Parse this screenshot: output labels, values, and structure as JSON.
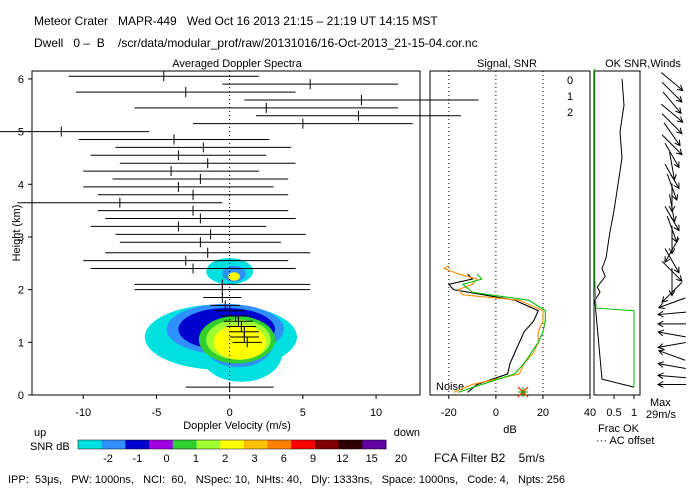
{
  "header": {
    "title_line": "Meteor Crater   MAPR-449   Wed Oct 16 2013 21:15 – 21:19 UT 14:15 MST",
    "dwell_line": "Dwell   0 –  B    /scr/data/modular_prof/raw/20131016/16-Oct-2013_21-15-04.cor.nc"
  },
  "colors": {
    "snr_scale": [
      "#00e0e0",
      "#3090ff",
      "#0000d0",
      "#a000e0",
      "#30d030",
      "#a0ff30",
      "#ffff00",
      "#ffc000",
      "#ff8000",
      "#ff0000",
      "#800000",
      "#300000",
      "#6000a0"
    ],
    "snr_series": [
      "#000000",
      "#ff8c00",
      "#00c000"
    ],
    "wind_text": "#000000"
  },
  "spectra": {
    "chart_data": {
      "type": "heatmap",
      "title": "Averaged Doppler Spectra",
      "xlabel": "Doppler Velocity (m/s)",
      "ylabel": "Height (km)",
      "xlim": [
        -13.5,
        13
      ],
      "ylim": [
        0,
        6.15
      ],
      "xticks": [
        -10,
        -5,
        0,
        5,
        10
      ],
      "yticks": [
        0,
        1,
        2,
        3,
        4,
        5,
        6
      ],
      "left_end_label": "up",
      "right_end_label": "down",
      "moments": {
        "height_km": [
          0.15,
          1.0,
          1.1,
          1.2,
          1.3,
          1.4,
          1.5,
          1.6,
          1.7,
          1.85,
          2.0,
          2.1,
          2.4,
          2.55,
          2.7,
          2.9,
          3.05,
          3.2,
          3.35,
          3.5,
          3.65,
          3.8,
          3.95,
          4.1,
          4.25,
          4.4,
          4.55,
          4.7,
          4.85,
          5.0,
          5.15,
          5.3,
          5.45,
          5.6,
          5.75,
          5.9,
          6.05
        ],
        "mean_velocity_ms": [
          0.0,
          1.2,
          1.0,
          1.0,
          0.8,
          0.6,
          0.4,
          0.0,
          -0.3,
          -0.5,
          -0.5,
          -0.5,
          -2.5,
          -3.0,
          -1.5,
          -2.0,
          -1.3,
          -3.5,
          -2.0,
          -2.5,
          -7.5,
          -2.5,
          -3.5,
          -2.0,
          -4.0,
          -1.5,
          -3.5,
          -1.8,
          -3.8,
          -11.5,
          5.0,
          8.8,
          2.5,
          9.0,
          -3.0,
          5.5,
          -4.5
        ],
        "spectral_width_ms": [
          3.0,
          1.0,
          1.0,
          1.0,
          1.0,
          1.0,
          1.0,
          1.0,
          1.0,
          1.3,
          6.0,
          6.0,
          7.0,
          7.0,
          7.0,
          5.5,
          6.5,
          6.0,
          6.5,
          6.5,
          7.0,
          6.5,
          6.5,
          6.0,
          6.0,
          6.0,
          6.0,
          6.0,
          6.5,
          6.0,
          7.5,
          7.0,
          9.0,
          8.0,
          7.5,
          6.0,
          6.5
        ]
      }
    }
  },
  "snr_colorbar": {
    "label": "SNR dB",
    "values": [
      "-2",
      "-1",
      "0",
      "1",
      "2",
      "3",
      "6",
      "9",
      "12",
      "15",
      "20"
    ]
  },
  "signal_panel": {
    "chart_data": {
      "type": "line",
      "title": "Signal, SNR",
      "xlabel": "dB",
      "xlim": [
        -28,
        40
      ],
      "xticks": [
        -20,
        0,
        20,
        40
      ],
      "ylim": [
        0,
        6.15
      ],
      "noise_label": "Noise",
      "legend": [
        "0",
        "1",
        "2"
      ],
      "series": [
        {
          "name": "0",
          "height_km": [
            0.05,
            0.2,
            0.4,
            0.6,
            0.8,
            1.0,
            1.2,
            1.4,
            1.6,
            1.8,
            2.0,
            2.1,
            2.2,
            2.3
          ],
          "snr_db": [
            -12,
            -8,
            5,
            6,
            8,
            10,
            12,
            16,
            18,
            8,
            -18,
            -20,
            -10,
            -12
          ]
        },
        {
          "name": "1",
          "height_km": [
            0.05,
            0.2,
            0.4,
            0.6,
            0.8,
            1.0,
            1.2,
            1.4,
            1.6,
            1.8,
            1.9,
            2.0,
            2.1,
            2.2,
            2.3,
            2.4,
            2.45
          ],
          "snr_db": [
            -18,
            -10,
            10,
            12,
            16,
            18,
            18,
            20,
            20,
            10,
            -14,
            -16,
            -10,
            -8,
            -16,
            -22,
            -20
          ]
        },
        {
          "name": "2",
          "height_km": [
            0.05,
            0.2,
            0.4,
            0.6,
            0.8,
            1.0,
            1.2,
            1.4,
            1.6,
            1.8,
            1.95,
            2.1,
            2.2,
            2.3
          ],
          "snr_db": [
            -16,
            -6,
            8,
            12,
            15,
            18,
            20,
            21,
            21,
            14,
            -10,
            -14,
            -6,
            -8
          ]
        }
      ]
    }
  },
  "winds_panel": {
    "chart_data": {
      "type": "line",
      "title": "OK SNR,Winds",
      "xlabel": "Frac OK",
      "xlim": [
        0,
        1.15
      ],
      "xticks": [
        "0.5",
        "1"
      ],
      "offset_label": "··· AC offset",
      "max_label": "Max",
      "max_value": "29m/s",
      "series": [
        {
          "name": "black frac",
          "height_km": [
            0.15,
            0.3,
            1.8,
            1.95,
            2.05,
            2.25,
            2.4,
            2.6,
            3.1,
            3.5,
            4.0,
            4.5,
            5.0,
            5.5,
            6.0
          ],
          "frac": [
            1.0,
            0.2,
            0.02,
            0.15,
            0.08,
            0.28,
            0.2,
            0.3,
            0.4,
            0.5,
            0.6,
            0.7,
            0.65,
            0.75,
            0.7
          ]
        },
        {
          "name": "green frac",
          "height_km": [
            0.15,
            1.6,
            1.65,
            2.2,
            2.3,
            6.2
          ],
          "frac": [
            1.0,
            1.0,
            0.05,
            0.02,
            0.02,
            0.02
          ]
        }
      ],
      "barbs": {
        "height_km": [
          0.2,
          0.35,
          0.55,
          0.75,
          0.95,
          1.15,
          1.35,
          1.55,
          1.75,
          1.95,
          2.15,
          2.35,
          2.55,
          2.75,
          2.95,
          3.15,
          3.35,
          3.55,
          3.75,
          3.95,
          4.15,
          4.35,
          4.55,
          4.75,
          4.95,
          5.15,
          5.35,
          5.55,
          5.75,
          5.95
        ],
        "dir_deg": [
          180,
          185,
          190,
          200,
          170,
          190,
          180,
          175,
          160,
          135,
          90,
          45,
          60,
          120,
          90,
          70,
          60,
          80,
          90,
          70,
          60,
          80,
          60,
          45,
          55,
          45,
          40,
          50,
          45,
          40
        ]
      }
    }
  },
  "footer": {
    "filter": "FCA Filter B2    5m/s",
    "params": "IPP:  53μs,   PW: 1000ns,   NCI:  60,   NSpec: 10,  NHts: 40,   Dly: 1333ns,   Space: 1000ns,   Code: 4,   Npts: 256"
  }
}
